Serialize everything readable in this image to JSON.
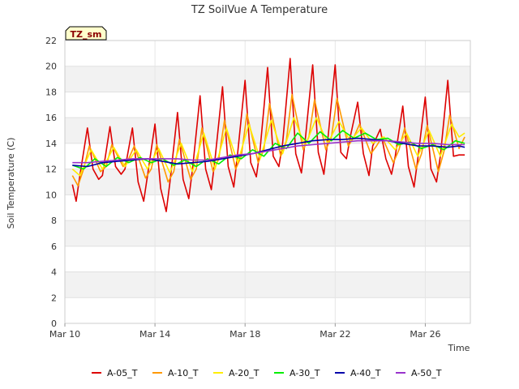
{
  "chart_data": {
    "type": "line",
    "title": "TZ SoilVue A Temperature",
    "badge": "TZ_sm",
    "xlabel": "Time",
    "ylabel": "Soil Temperature (C)",
    "ylim": [
      0,
      22
    ],
    "yticks": [
      0,
      2,
      4,
      6,
      8,
      10,
      12,
      14,
      16,
      18,
      20,
      22
    ],
    "xlim": [
      "2024-03-10",
      "2024-03-28"
    ],
    "xticks": [
      {
        "value": "2024-03-10",
        "label": "Mar 10"
      },
      {
        "value": "2024-03-14",
        "label": "Mar 14"
      },
      {
        "value": "2024-03-18",
        "label": "Mar 18"
      },
      {
        "value": "2024-03-22",
        "label": "Mar 22"
      },
      {
        "value": "2024-03-26",
        "label": "Mar 26"
      }
    ],
    "grid": true,
    "legend": "bottom",
    "series": [
      {
        "name": "A-05_T",
        "color": "#dd0000",
        "x": [
          "2024-03-10T08:00",
          "2024-03-10T12:00",
          "2024-03-10T16:00",
          "2024-03-11T00:00",
          "2024-03-11T06:00",
          "2024-03-11T12:00",
          "2024-03-11T16:00",
          "2024-03-12T00:00",
          "2024-03-12T06:00",
          "2024-03-12T12:00",
          "2024-03-12T16:00",
          "2024-03-13T00:00",
          "2024-03-13T06:00",
          "2024-03-13T12:00",
          "2024-03-13T16:00",
          "2024-03-14T00:00",
          "2024-03-14T06:00",
          "2024-03-14T12:00",
          "2024-03-14T16:00",
          "2024-03-15T00:00",
          "2024-03-15T06:00",
          "2024-03-15T12:00",
          "2024-03-15T16:00",
          "2024-03-16T00:00",
          "2024-03-16T06:00",
          "2024-03-16T12:00",
          "2024-03-16T16:00",
          "2024-03-17T00:00",
          "2024-03-17T06:00",
          "2024-03-17T12:00",
          "2024-03-17T16:00",
          "2024-03-18T00:00",
          "2024-03-18T06:00",
          "2024-03-18T12:00",
          "2024-03-18T16:00",
          "2024-03-19T00:00",
          "2024-03-19T06:00",
          "2024-03-19T12:00",
          "2024-03-19T16:00",
          "2024-03-20T00:00",
          "2024-03-20T06:00",
          "2024-03-20T12:00",
          "2024-03-20T16:00",
          "2024-03-21T00:00",
          "2024-03-21T06:00",
          "2024-03-21T12:00",
          "2024-03-21T16:00",
          "2024-03-22T00:00",
          "2024-03-22T06:00",
          "2024-03-22T12:00",
          "2024-03-22T16:00",
          "2024-03-23T00:00",
          "2024-03-23T06:00",
          "2024-03-23T12:00",
          "2024-03-23T16:00",
          "2024-03-24T00:00",
          "2024-03-24T06:00",
          "2024-03-24T12:00",
          "2024-03-24T16:00",
          "2024-03-25T00:00",
          "2024-03-25T06:00",
          "2024-03-25T12:00",
          "2024-03-25T16:00",
          "2024-03-26T00:00",
          "2024-03-26T06:00",
          "2024-03-26T12:00",
          "2024-03-26T16:00",
          "2024-03-27T00:00",
          "2024-03-27T06:00",
          "2024-03-27T12:00",
          "2024-03-27T18:00"
        ],
        "y": [
          10.8,
          9.5,
          11.5,
          15.2,
          12.0,
          11.2,
          11.5,
          15.3,
          12.2,
          11.6,
          12.0,
          15.2,
          11.0,
          9.5,
          11.5,
          15.5,
          10.5,
          8.7,
          11.0,
          16.4,
          11.2,
          9.7,
          12.0,
          17.7,
          12.0,
          10.4,
          12.8,
          18.4,
          12.2,
          10.6,
          13.2,
          18.9,
          12.5,
          11.4,
          13.5,
          19.9,
          13.0,
          12.2,
          14.0,
          20.6,
          13.2,
          11.7,
          14.2,
          20.1,
          13.3,
          11.6,
          14.2,
          20.1,
          13.3,
          12.8,
          14.5,
          17.2,
          13.2,
          11.5,
          13.8,
          15.1,
          12.8,
          11.6,
          13.0,
          16.9,
          12.2,
          10.6,
          12.8,
          17.6,
          12.0,
          11.0,
          13.0,
          18.9,
          13.0,
          13.1,
          13.1
        ]
      },
      {
        "name": "A-10_T",
        "color": "#ff9900",
        "x": [
          "2024-03-10T08:00",
          "2024-03-10T14:00",
          "2024-03-10T20:00",
          "2024-03-11T02:00",
          "2024-03-11T14:00",
          "2024-03-11T20:00",
          "2024-03-12T02:00",
          "2024-03-12T14:00",
          "2024-03-12T20:00",
          "2024-03-13T02:00",
          "2024-03-13T14:00",
          "2024-03-13T20:00",
          "2024-03-14T02:00",
          "2024-03-14T14:00",
          "2024-03-14T20:00",
          "2024-03-15T02:00",
          "2024-03-15T14:00",
          "2024-03-15T20:00",
          "2024-03-16T02:00",
          "2024-03-16T14:00",
          "2024-03-16T20:00",
          "2024-03-17T02:00",
          "2024-03-17T14:00",
          "2024-03-17T20:00",
          "2024-03-18T02:00",
          "2024-03-18T14:00",
          "2024-03-18T20:00",
          "2024-03-19T02:00",
          "2024-03-19T14:00",
          "2024-03-19T20:00",
          "2024-03-20T02:00",
          "2024-03-20T14:00",
          "2024-03-20T20:00",
          "2024-03-21T02:00",
          "2024-03-21T14:00",
          "2024-03-21T20:00",
          "2024-03-22T02:00",
          "2024-03-22T14:00",
          "2024-03-22T20:00",
          "2024-03-23T02:00",
          "2024-03-23T14:00",
          "2024-03-23T20:00",
          "2024-03-24T02:00",
          "2024-03-24T14:00",
          "2024-03-24T20:00",
          "2024-03-25T02:00",
          "2024-03-25T14:00",
          "2024-03-25T20:00",
          "2024-03-26T02:00",
          "2024-03-26T14:00",
          "2024-03-26T20:00",
          "2024-03-27T02:00",
          "2024-03-27T12:00",
          "2024-03-27T18:00"
        ],
        "y": [
          11.5,
          10.7,
          12.0,
          13.8,
          11.8,
          12.2,
          13.9,
          12.2,
          12.8,
          13.8,
          11.3,
          12.0,
          13.9,
          11.0,
          11.8,
          14.3,
          11.2,
          12.0,
          15.2,
          11.8,
          12.8,
          15.8,
          12.0,
          13.0,
          16.3,
          12.5,
          13.5,
          17.1,
          13.0,
          14.2,
          17.8,
          13.5,
          14.5,
          17.4,
          13.5,
          14.5,
          17.5,
          13.8,
          14.5,
          15.5,
          13.2,
          13.8,
          14.5,
          12.5,
          13.5,
          15.2,
          12.0,
          13.2,
          15.4,
          11.8,
          13.4,
          16.2,
          13.6,
          14.5
        ]
      },
      {
        "name": "A-20_T",
        "color": "#ffee00",
        "x": [
          "2024-03-10T08:00",
          "2024-03-10T16:00",
          "2024-03-11T04:00",
          "2024-03-11T16:00",
          "2024-03-12T04:00",
          "2024-03-12T16:00",
          "2024-03-13T04:00",
          "2024-03-13T16:00",
          "2024-03-14T04:00",
          "2024-03-14T16:00",
          "2024-03-15T04:00",
          "2024-03-15T16:00",
          "2024-03-16T04:00",
          "2024-03-16T16:00",
          "2024-03-17T04:00",
          "2024-03-17T16:00",
          "2024-03-18T04:00",
          "2024-03-18T16:00",
          "2024-03-19T04:00",
          "2024-03-19T16:00",
          "2024-03-20T04:00",
          "2024-03-20T16:00",
          "2024-03-21T04:00",
          "2024-03-21T16:00",
          "2024-03-22T04:00",
          "2024-03-22T16:00",
          "2024-03-23T04:00",
          "2024-03-23T16:00",
          "2024-03-24T04:00",
          "2024-03-24T16:00",
          "2024-03-25T04:00",
          "2024-03-25T16:00",
          "2024-03-26T04:00",
          "2024-03-26T16:00",
          "2024-03-27T04:00",
          "2024-03-27T12:00",
          "2024-03-27T18:00"
        ],
        "y": [
          12.0,
          11.5,
          13.5,
          12.0,
          13.7,
          12.2,
          13.5,
          12.0,
          13.6,
          11.7,
          14.0,
          11.8,
          14.8,
          12.0,
          15.2,
          12.5,
          15.5,
          12.8,
          15.8,
          13.2,
          16.0,
          13.8,
          16.0,
          14.0,
          15.7,
          14.2,
          15.2,
          14.0,
          14.5,
          13.5,
          14.8,
          13.0,
          15.0,
          13.0,
          15.5,
          14.5,
          14.8
        ]
      },
      {
        "name": "A-30_T",
        "color": "#00ee00",
        "x": [
          "2024-03-10T08:00",
          "2024-03-10T20:00",
          "2024-03-11T08:00",
          "2024-03-11T20:00",
          "2024-03-12T08:00",
          "2024-03-12T20:00",
          "2024-03-13T08:00",
          "2024-03-13T20:00",
          "2024-03-14T08:00",
          "2024-03-14T20:00",
          "2024-03-15T08:00",
          "2024-03-15T20:00",
          "2024-03-16T08:00",
          "2024-03-16T20:00",
          "2024-03-17T08:00",
          "2024-03-17T20:00",
          "2024-03-18T08:00",
          "2024-03-18T20:00",
          "2024-03-19T08:00",
          "2024-03-19T20:00",
          "2024-03-20T08:00",
          "2024-03-20T20:00",
          "2024-03-21T08:00",
          "2024-03-21T20:00",
          "2024-03-22T08:00",
          "2024-03-22T20:00",
          "2024-03-23T08:00",
          "2024-03-23T20:00",
          "2024-03-24T08:00",
          "2024-03-24T20:00",
          "2024-03-25T08:00",
          "2024-03-25T20:00",
          "2024-03-26T08:00",
          "2024-03-26T20:00",
          "2024-03-27T08:00",
          "2024-03-27T18:00"
        ],
        "y": [
          12.3,
          12.0,
          12.8,
          12.2,
          12.9,
          12.5,
          12.9,
          12.5,
          12.8,
          12.3,
          12.7,
          12.2,
          12.8,
          12.4,
          13.1,
          12.8,
          13.5,
          13.0,
          14.0,
          13.6,
          14.8,
          14.0,
          14.9,
          14.2,
          15.0,
          14.4,
          14.8,
          14.3,
          14.4,
          13.9,
          14.1,
          13.6,
          13.9,
          13.5,
          14.2,
          14.0
        ]
      },
      {
        "name": "A-40_T",
        "color": "#0000aa",
        "x": [
          "2024-03-10T08:00",
          "2024-03-11T00:00",
          "2024-03-11T16:00",
          "2024-03-12T08:00",
          "2024-03-13T00:00",
          "2024-03-13T16:00",
          "2024-03-14T08:00",
          "2024-03-15T00:00",
          "2024-03-15T16:00",
          "2024-03-16T08:00",
          "2024-03-17T00:00",
          "2024-03-17T16:00",
          "2024-03-18T08:00",
          "2024-03-19T00:00",
          "2024-03-19T16:00",
          "2024-03-20T08:00",
          "2024-03-21T00:00",
          "2024-03-21T16:00",
          "2024-03-22T08:00",
          "2024-03-23T00:00",
          "2024-03-23T16:00",
          "2024-03-24T08:00",
          "2024-03-25T00:00",
          "2024-03-25T16:00",
          "2024-03-26T08:00",
          "2024-03-27T00:00",
          "2024-03-27T12:00",
          "2024-03-27T18:00"
        ],
        "y": [
          12.3,
          12.2,
          12.5,
          12.6,
          12.7,
          12.8,
          12.6,
          12.4,
          12.5,
          12.6,
          12.8,
          13.0,
          13.2,
          13.5,
          13.8,
          14.0,
          14.2,
          14.3,
          14.3,
          14.4,
          14.3,
          14.2,
          14.0,
          13.8,
          13.8,
          13.7,
          13.8,
          13.7
        ]
      },
      {
        "name": "A-50_T",
        "color": "#9933cc",
        "x": [
          "2024-03-10T08:00",
          "2024-03-11T00:00",
          "2024-03-11T16:00",
          "2024-03-12T08:00",
          "2024-03-13T00:00",
          "2024-03-13T16:00",
          "2024-03-14T08:00",
          "2024-03-15T00:00",
          "2024-03-15T16:00",
          "2024-03-16T08:00",
          "2024-03-17T00:00",
          "2024-03-17T16:00",
          "2024-03-18T08:00",
          "2024-03-19T00:00",
          "2024-03-19T16:00",
          "2024-03-20T08:00",
          "2024-03-21T00:00",
          "2024-03-21T16:00",
          "2024-03-22T08:00",
          "2024-03-23T00:00",
          "2024-03-23T16:00",
          "2024-03-24T08:00",
          "2024-03-25T00:00",
          "2024-03-25T16:00",
          "2024-03-26T08:00",
          "2024-03-27T00:00",
          "2024-03-27T12:00",
          "2024-03-27T18:00"
        ],
        "y": [
          12.5,
          12.5,
          12.6,
          12.7,
          12.8,
          12.8,
          12.8,
          12.8,
          12.7,
          12.7,
          12.9,
          13.1,
          13.2,
          13.4,
          13.6,
          13.8,
          13.9,
          14.0,
          14.1,
          14.2,
          14.2,
          14.2,
          14.1,
          14.0,
          14.0,
          13.9,
          13.9,
          13.9
        ]
      }
    ]
  }
}
